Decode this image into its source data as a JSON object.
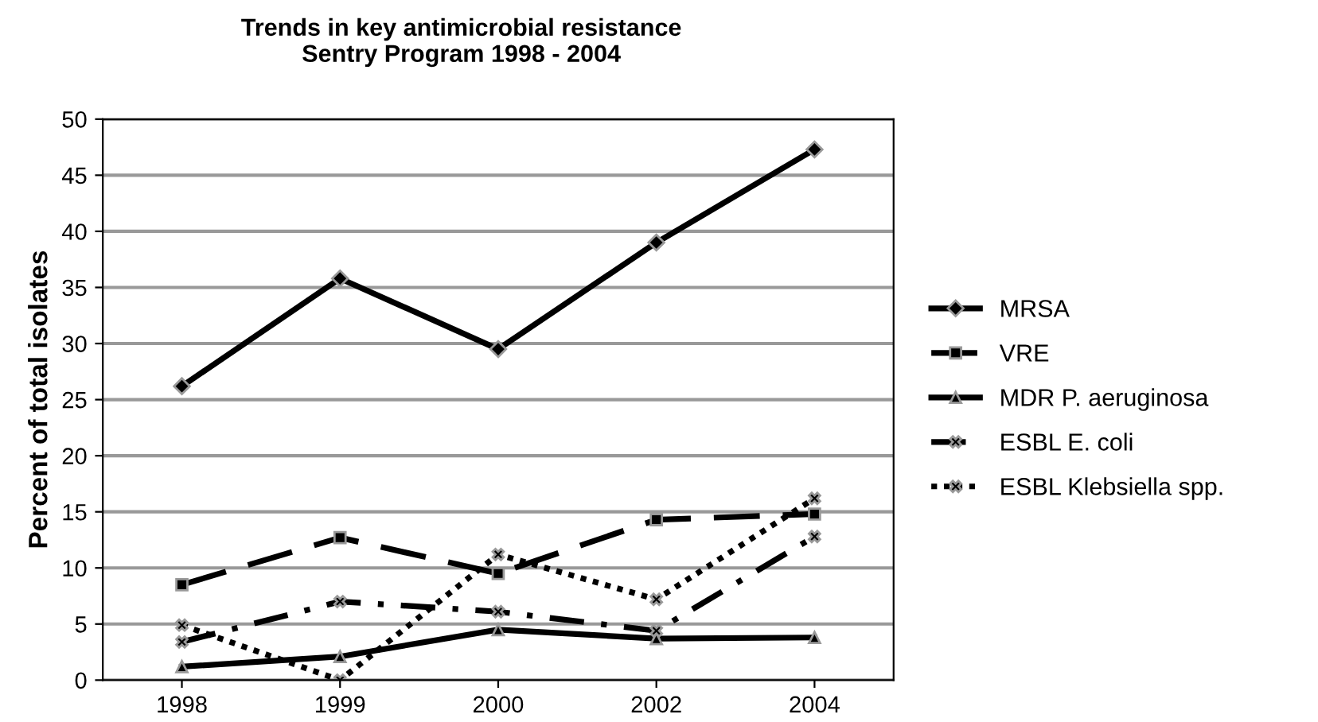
{
  "chart_data": {
    "type": "line",
    "title": "Trends in key antimicrobial resistance\nSentry Program 1998 - 2004",
    "ylabel": "Percent of total isolates",
    "categories": [
      "1998",
      "1999",
      "2000",
      "2002",
      "2004"
    ],
    "series": [
      {
        "name": "MRSA",
        "color": "#000000",
        "values": [
          26.2,
          35.8,
          29.5,
          39,
          47.3
        ],
        "marker": "diamond",
        "line_style": "solid"
      },
      {
        "name": "VRE",
        "color": "#000000",
        "values": [
          8.5,
          12.7,
          9.5,
          14.3,
          14.8
        ],
        "marker": "square",
        "line_style": "dashed"
      },
      {
        "name": "MDR P. aeruginosa",
        "color": "#000000",
        "values": [
          1.2,
          2.1,
          4.5,
          3.7,
          3.8
        ],
        "marker": "triangle",
        "line_style": "solid"
      },
      {
        "name": "ESBL E. coli",
        "color": "#000000",
        "values": [
          3.4,
          7.0,
          6.1,
          4.4,
          12.8
        ],
        "marker": "cross",
        "line_style": "dashdot"
      },
      {
        "name": "ESBL Klebsiella spp.",
        "color": "#000000",
        "values": [
          4.9,
          0,
          11.2,
          7.2,
          16.2
        ],
        "marker": "cross",
        "line_style": "dotted"
      }
    ],
    "ylim": [
      0,
      50
    ],
    "yticks": [
      0,
      5,
      10,
      15,
      20,
      25,
      30,
      35,
      40,
      45,
      50
    ],
    "grid": "y",
    "legend": "right"
  }
}
